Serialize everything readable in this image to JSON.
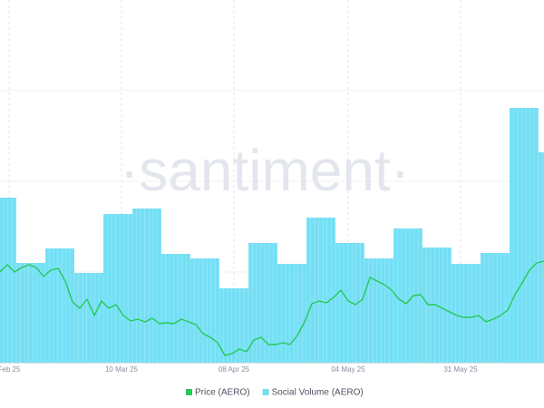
{
  "chart_data": {
    "type": "combo",
    "watermark": "·santiment·",
    "xlim": [
      0,
      75
    ],
    "ylim": [
      0,
      100
    ],
    "xticks": [
      {
        "value": 1.25,
        "label": "Feb 25"
      },
      {
        "value": 16.75,
        "label": "10 Mar 25"
      },
      {
        "value": 32.25,
        "label": "08 Apr 25"
      },
      {
        "value": 48,
        "label": "04 May 25"
      },
      {
        "value": 63.5,
        "label": "31 May 25"
      }
    ],
    "grid": true,
    "series": [
      {
        "name": "Price (AERO)",
        "type": "line",
        "color": "#26c953",
        "x": [
          0,
          1,
          2,
          3,
          4,
          5,
          6,
          7,
          8,
          9,
          10,
          11,
          12,
          13,
          14,
          15,
          16,
          17,
          18,
          19,
          20,
          21,
          22,
          23,
          24,
          25,
          26,
          27,
          28,
          29,
          30,
          31,
          32,
          33,
          34,
          35,
          36,
          37,
          38,
          39,
          40,
          41,
          42,
          43,
          44,
          45,
          46,
          47,
          48,
          49,
          50,
          51,
          52,
          53,
          54,
          55,
          56,
          57,
          58,
          59,
          60,
          61,
          62,
          63,
          64,
          65,
          66,
          67,
          68,
          69,
          70,
          71,
          72,
          73,
          74,
          75
        ],
        "values": [
          25,
          27,
          25,
          26.25,
          27,
          26.25,
          23.75,
          25.5,
          26,
          22.5,
          16.75,
          15,
          17.5,
          13,
          17,
          15,
          16,
          13,
          11.5,
          12,
          11.25,
          12.25,
          10.75,
          11,
          10.75,
          12,
          11.25,
          10.5,
          8,
          7,
          5.5,
          2,
          2.5,
          3.75,
          3,
          6.25,
          7,
          5,
          5,
          5.5,
          5,
          7.5,
          11.25,
          16.25,
          17,
          16.5,
          18,
          20,
          17,
          16,
          17.5,
          23.5,
          22.5,
          21.5,
          20,
          17.5,
          16.25,
          18.5,
          18.75,
          16,
          16,
          15,
          14,
          13,
          12.5,
          12.5,
          13,
          11.25,
          12,
          13,
          14.5,
          18.75,
          22,
          25.5,
          27.5,
          28
        ]
      },
      {
        "name": "Social Volume (AERO)",
        "type": "bar",
        "color": "#74dff5",
        "width": 4,
        "x": [
          0.25,
          4.25,
          8.25,
          12.25,
          16.25,
          20.25,
          24.25,
          28.25,
          32.25,
          36.25,
          40.25,
          44.25,
          48.25,
          52.25,
          56.25,
          60.25,
          64.25,
          68.25,
          72.25,
          76.25
        ],
        "values": [
          45.5,
          27.5,
          31.5,
          24.75,
          41,
          42.5,
          30,
          28.75,
          20.5,
          33,
          27.25,
          40,
          33,
          28.75,
          37,
          31.75,
          27.25,
          30.25,
          70.25,
          58
        ]
      }
    ]
  }
}
